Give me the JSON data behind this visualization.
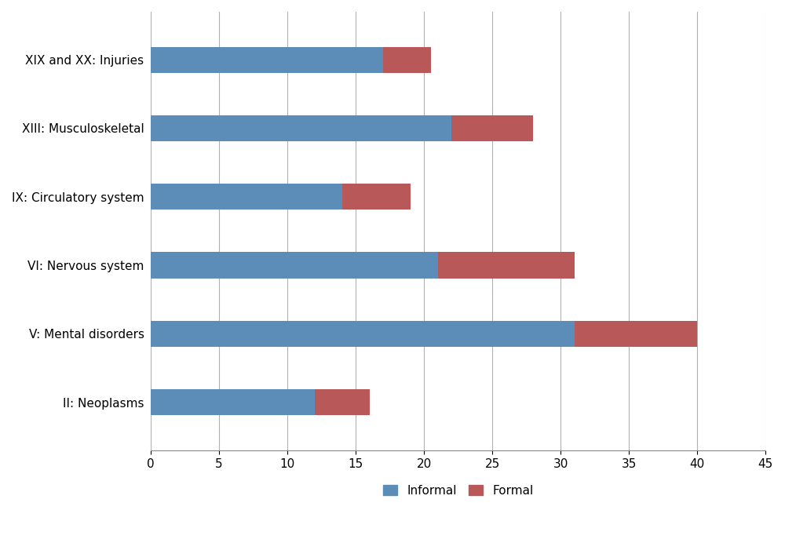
{
  "categories": [
    "II: Neoplasms",
    "V: Mental disorders",
    "VI: Nervous system",
    "IX: Circulatory system",
    "XIII: Musculoskeletal",
    "XIX and XX: Injuries"
  ],
  "informal": [
    12,
    31,
    21,
    14,
    22,
    17
  ],
  "formal": [
    4,
    9,
    10,
    5,
    6,
    3.5
  ],
  "informal_color": "#5b8db8",
  "formal_color": "#b85858",
  "xlim": [
    0,
    45
  ],
  "xticks": [
    0,
    5,
    10,
    15,
    20,
    25,
    30,
    35,
    40,
    45
  ],
  "bar_height": 0.38,
  "legend_labels": [
    "Informal",
    "Formal"
  ],
  "background_color": "#ffffff",
  "grid_color": "#b0b0b0",
  "tick_fontsize": 11,
  "label_fontsize": 11
}
